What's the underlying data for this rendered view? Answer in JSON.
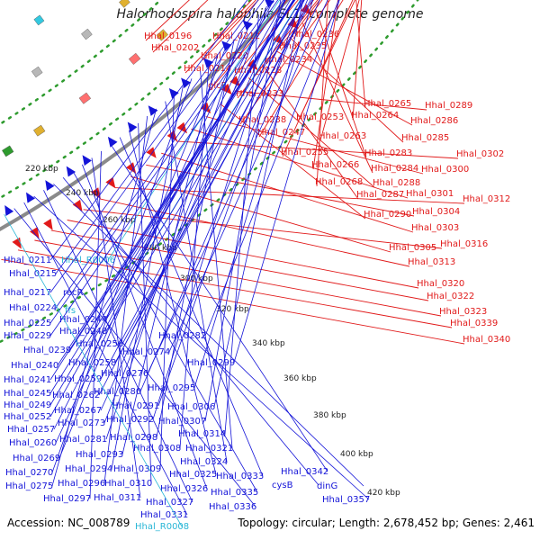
{
  "title": "Halorhodospira halophila SL1, complete genome",
  "footer": {
    "accession": "Accession: NC_008789",
    "topology": "Topology: circular; Length: 2,678,452 bp; Genes: 2,461"
  },
  "colors": {
    "forward_gene": "#e11a1a",
    "reverse_gene": "#1414d8",
    "rna_gene": "#29b6d6",
    "backbone": "#8a8a8a",
    "dotted_ring": "#2e9b2e"
  },
  "ticks": [
    "220 kbp",
    "240 kbp",
    "260 kbp",
    "280 kbp",
    "300 kbp",
    "320 kbp",
    "340 kbp",
    "360 kbp",
    "380 kbp",
    "400 kbp",
    "420 kbp"
  ],
  "forward_labels": [
    "Hhal_0196",
    "Hhal_0202",
    "Hhal_0212",
    "Hhal_0220",
    "Hhal_0214",
    "glcF",
    "Hhal_0228",
    "Hhal_0233",
    "Hhal_0236",
    "Hhal_0235",
    "Hhal_0234",
    "Hhal_0238",
    "Hhal_0247",
    "Hhal_0253",
    "Hhal_0255",
    "Hhal_0263",
    "Hhal_0264",
    "Hhal_0265",
    "Hhal_0266",
    "Hhal_0268",
    "Hhal_0283",
    "Hhal_0284",
    "Hhal_0285",
    "Hhal_0286",
    "Hhal_0287",
    "Hhal_0288",
    "Hhal_0289",
    "Hhal_0290",
    "Hhal_0300",
    "Hhal_0301",
    "Hhal_0302",
    "Hhal_0303",
    "Hhal_0304",
    "Hhal_0305",
    "Hhal_0312",
    "Hhal_0313",
    "Hhal_0316",
    "Hhal_0320",
    "Hhal_0322",
    "Hhal_0323",
    "Hhal_0339",
    "Hhal_0340"
  ],
  "reverse_labels": [
    "Hhal_0211",
    "Hhal_R0006",
    "Hhal_0215",
    "Hhal_0217",
    "recR",
    "Hhal_0224",
    "ffs",
    "Hhal_0225",
    "Hhal_0244",
    "Hhal_0229",
    "Hhal_0248",
    "Hhal_0239",
    "Hhal_0256",
    "Hhal_0282",
    "Hhal_0274",
    "Hhal_0240",
    "Hhal_0258",
    "Hhal_0276",
    "Hhal_0299",
    "Hhal_0241",
    "Hhal_0259",
    "Hhal_0245",
    "Hhal_0262",
    "Hhal_0280",
    "Hhal_0295",
    "Hhal_0249",
    "Hhal_0291",
    "Hhal_0306",
    "Hhal_0252",
    "Hhal_0267",
    "Hhal_0292",
    "Hhal_0307",
    "Hhal_0257",
    "Hhal_0273",
    "Hhal_0314",
    "Hhal_0260",
    "Hhal_0281",
    "Hhal_0298",
    "Hhal_0269",
    "Hhal_0293",
    "Hhal_0308",
    "Hhal_0321",
    "Hhal_0270",
    "Hhal_0294",
    "Hhal_0309",
    "Hhal_0324",
    "Hhal_0275",
    "Hhal_0296",
    "Hhal_0310",
    "Hhal_0325",
    "Hhal_0333",
    "Hhal_0342",
    "Hhal_0297",
    "Hhal_0311",
    "Hhal_0326",
    "Hhal_0335",
    "cysB",
    "dinG",
    "Hhal_0327",
    "Hhal_0357",
    "Hhal_0331",
    "Hhal_0336",
    "Hhal_R0008"
  ]
}
